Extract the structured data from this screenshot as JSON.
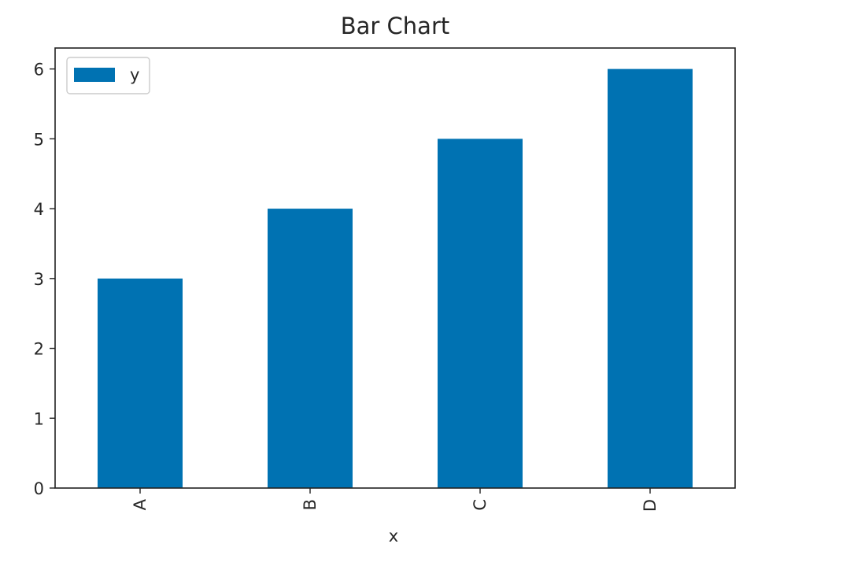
{
  "chart_data": {
    "type": "bar",
    "title": "Bar Chart",
    "xlabel": "x",
    "ylabel": "",
    "categories": [
      "A",
      "B",
      "C",
      "D"
    ],
    "series": [
      {
        "name": "y",
        "values": [
          3,
          4,
          5,
          6
        ]
      }
    ],
    "ylim": [
      0,
      6.3
    ],
    "yticks": [
      "0",
      "1",
      "2",
      "3",
      "4",
      "5",
      "6"
    ],
    "bar_color": "#0072b2",
    "grid": false,
    "legend_position": "top-left"
  }
}
